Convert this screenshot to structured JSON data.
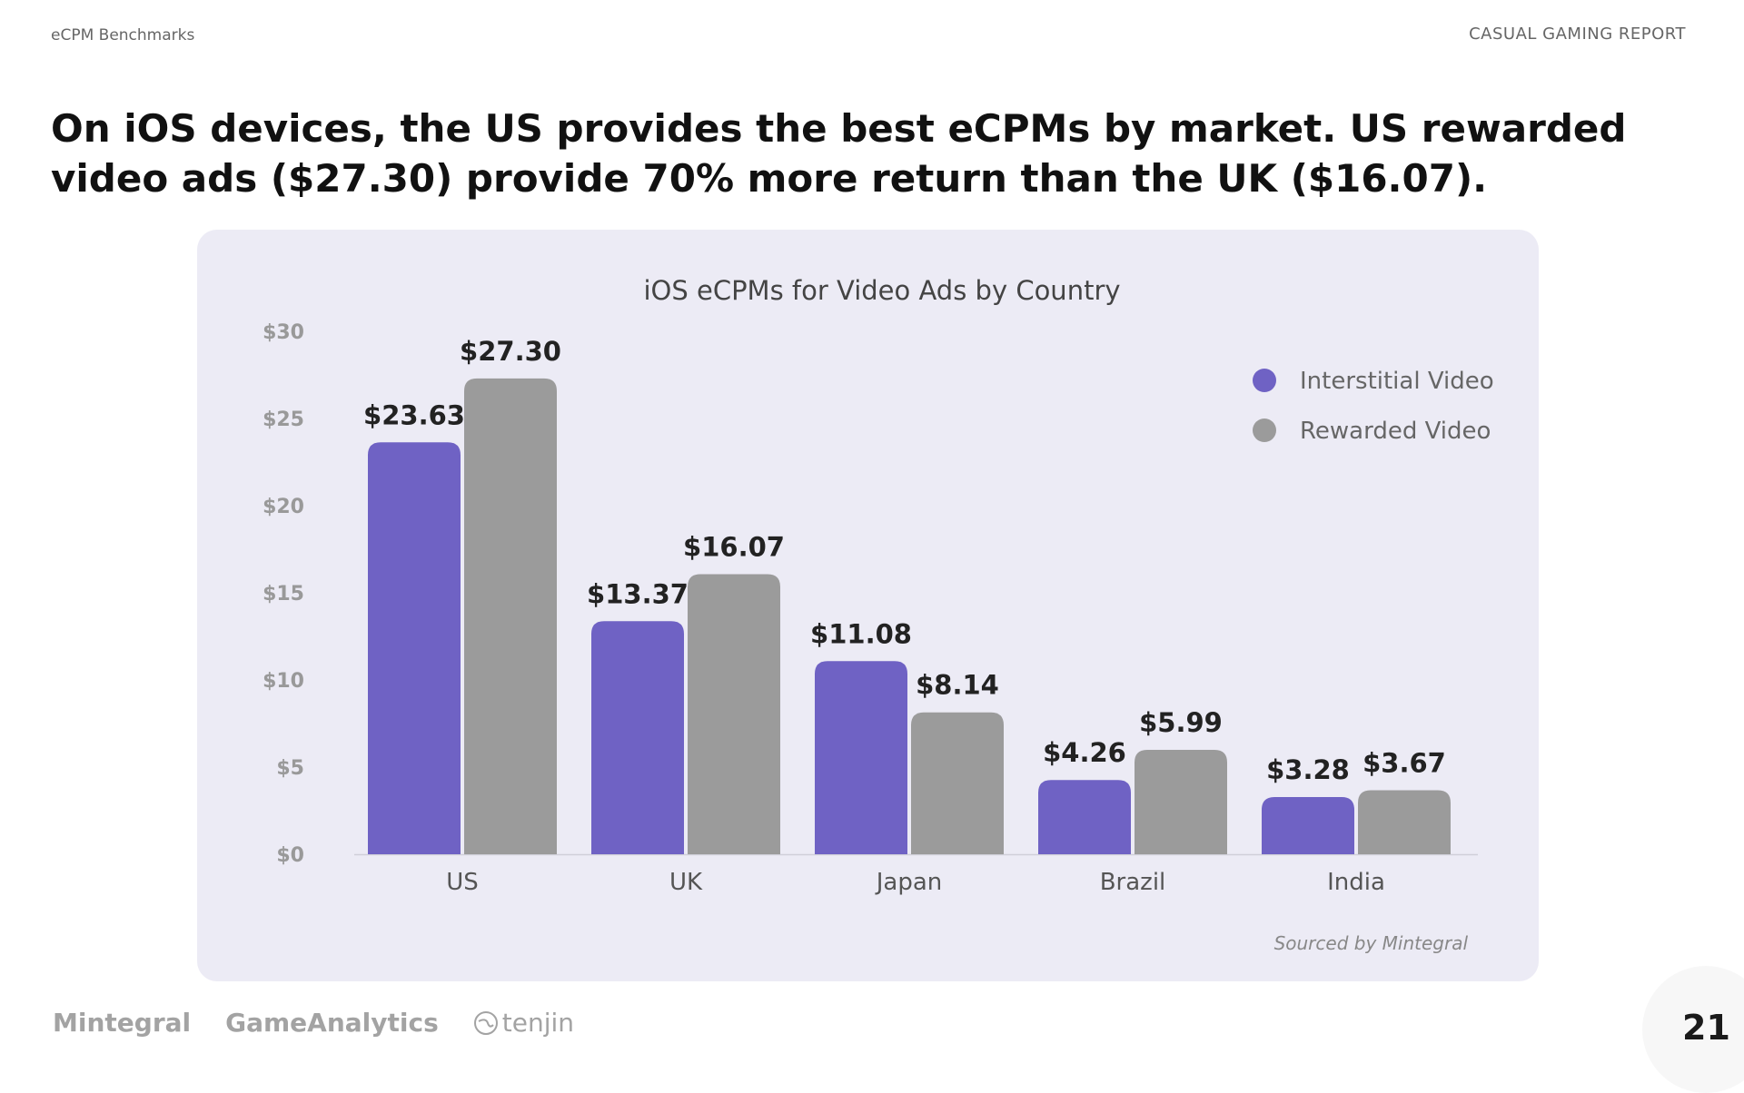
{
  "header": {
    "section": "eCPM Benchmarks",
    "report": "CASUAL GAMING REPORT"
  },
  "headline": "On iOS devices, the US provides the best eCPMs by market. US rewarded video ads ($27.30) provide 70% more return than the UK ($16.07).",
  "chart_data": {
    "type": "bar",
    "title": "iOS eCPMs for Video Ads by Country",
    "categories": [
      "US",
      "UK",
      "Japan",
      "Brazil",
      "India"
    ],
    "series": [
      {
        "name": "Interstitial Video",
        "color": "#6f62c4",
        "values": [
          23.63,
          13.37,
          11.08,
          4.26,
          3.28
        ],
        "labels": [
          "$23.63",
          "$13.37",
          "$11.08",
          "$4.26",
          "$3.28"
        ]
      },
      {
        "name": "Rewarded Video",
        "color": "#9b9b9b",
        "values": [
          27.3,
          16.07,
          8.14,
          5.99,
          3.67
        ],
        "labels": [
          "$27.30",
          "$16.07",
          "$8.14",
          "$5.99",
          "$3.67"
        ]
      }
    ],
    "ylim": [
      0,
      30
    ],
    "yticks": [
      0,
      5,
      10,
      15,
      20,
      25,
      30
    ],
    "ytick_labels": [
      "$0",
      "$5",
      "$10",
      "$15",
      "$20",
      "$25",
      "$30"
    ],
    "grid": false,
    "legend": "top-right",
    "source": "Sourced by Mintegral"
  },
  "footer": {
    "logos": [
      "Mintegral",
      "GameAnalytics",
      "tenjin"
    ],
    "page": "21"
  }
}
